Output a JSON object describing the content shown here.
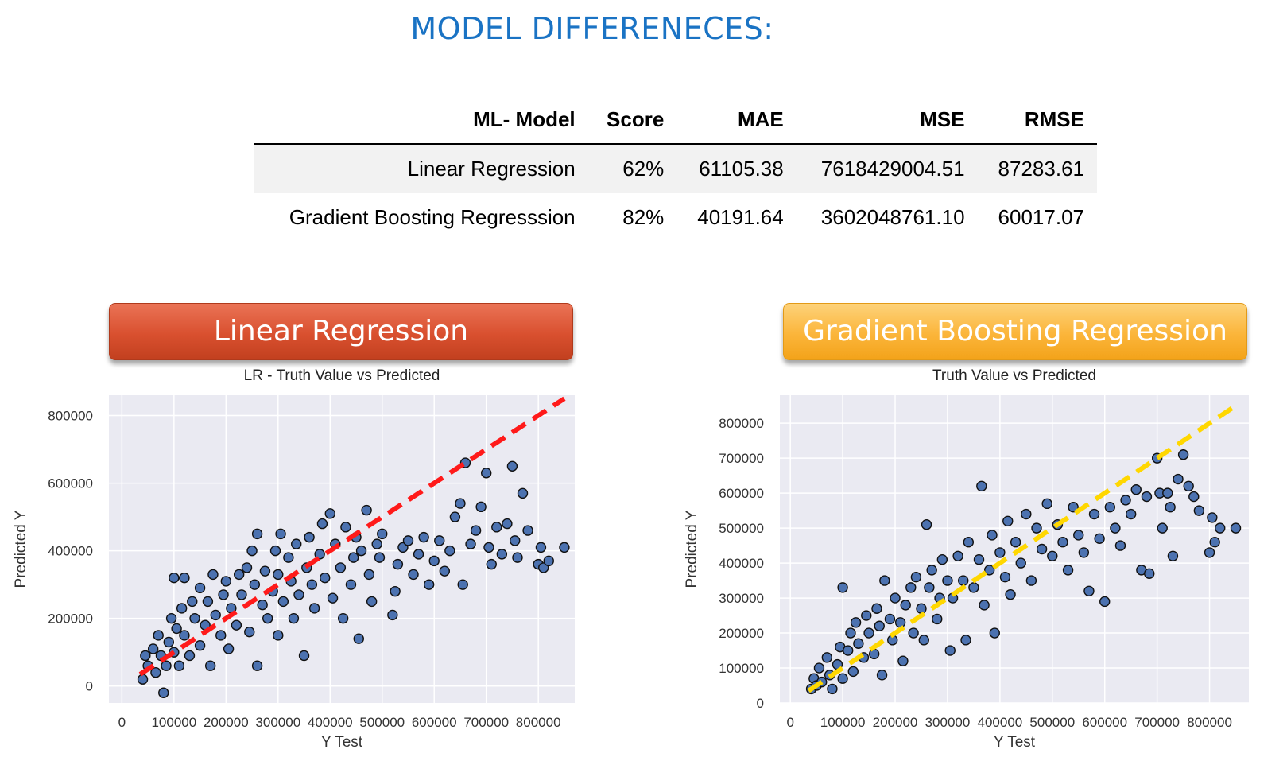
{
  "page_title": "MODEL DIFFERENECES:",
  "table": {
    "headers": [
      "ML- Model",
      "Score",
      "MAE",
      "MSE",
      "RMSE"
    ],
    "rows": [
      [
        "Linear Regression",
        "62%",
        "61105.38",
        "7618429004.51",
        "87283.61"
      ],
      [
        "Gradient Boosting Regresssion",
        "82%",
        "40191.64",
        "3602048761.10",
        "60017.07"
      ]
    ]
  },
  "banners": {
    "lr": "Linear Regression",
    "gb": "Gradient Boosting Regression"
  },
  "colors": {
    "title": "#1a73c4",
    "points": "#4c72b0",
    "lr_line": "#ff1a1a",
    "gb_line": "#ffd700",
    "plot_bg": "#eaeaf2"
  },
  "chart_data": [
    {
      "type": "scatter",
      "title": "LR - Truth Value vs Predicted",
      "xlabel": "Y Test",
      "ylabel": "Predicted Y",
      "xlim": [
        -25000,
        870000
      ],
      "ylim": [
        -50000,
        860000
      ],
      "xticks": [
        0,
        100000,
        200000,
        300000,
        400000,
        500000,
        600000,
        700000,
        800000
      ],
      "xtick_labels": [
        "0",
        "100000",
        "200000",
        "300000",
        "400000",
        "500000",
        "600000",
        "700000",
        "800000"
      ],
      "yticks": [
        0,
        200000,
        400000,
        600000,
        800000
      ],
      "ytick_labels": [
        "0",
        "200000",
        "400000",
        "600000",
        "800000"
      ],
      "grid": true,
      "reference_line": {
        "x": [
          35000,
          850000
        ],
        "y": [
          35000,
          850000
        ],
        "style": "dashed"
      },
      "points": [
        [
          40000,
          20000
        ],
        [
          45000,
          90000
        ],
        [
          50000,
          60000
        ],
        [
          60000,
          110000
        ],
        [
          65000,
          40000
        ],
        [
          70000,
          150000
        ],
        [
          75000,
          90000
        ],
        [
          80000,
          -20000
        ],
        [
          85000,
          60000
        ],
        [
          90000,
          130000
        ],
        [
          95000,
          200000
        ],
        [
          100000,
          100000
        ],
        [
          100000,
          320000
        ],
        [
          105000,
          170000
        ],
        [
          110000,
          60000
        ],
        [
          115000,
          230000
        ],
        [
          120000,
          150000
        ],
        [
          120000,
          320000
        ],
        [
          130000,
          90000
        ],
        [
          135000,
          250000
        ],
        [
          140000,
          200000
        ],
        [
          150000,
          120000
        ],
        [
          150000,
          290000
        ],
        [
          160000,
          180000
        ],
        [
          165000,
          250000
        ],
        [
          170000,
          60000
        ],
        [
          175000,
          330000
        ],
        [
          180000,
          210000
        ],
        [
          190000,
          150000
        ],
        [
          195000,
          270000
        ],
        [
          200000,
          310000
        ],
        [
          205000,
          110000
        ],
        [
          210000,
          230000
        ],
        [
          220000,
          180000
        ],
        [
          225000,
          330000
        ],
        [
          230000,
          270000
        ],
        [
          240000,
          350000
        ],
        [
          245000,
          160000
        ],
        [
          250000,
          400000
        ],
        [
          255000,
          300000
        ],
        [
          260000,
          60000
        ],
        [
          260000,
          450000
        ],
        [
          270000,
          240000
        ],
        [
          275000,
          340000
        ],
        [
          280000,
          200000
        ],
        [
          290000,
          280000
        ],
        [
          295000,
          400000
        ],
        [
          300000,
          330000
        ],
        [
          300000,
          150000
        ],
        [
          305000,
          450000
        ],
        [
          310000,
          250000
        ],
        [
          320000,
          380000
        ],
        [
          325000,
          310000
        ],
        [
          330000,
          200000
        ],
        [
          335000,
          420000
        ],
        [
          340000,
          270000
        ],
        [
          350000,
          90000
        ],
        [
          355000,
          350000
        ],
        [
          360000,
          440000
        ],
        [
          365000,
          300000
        ],
        [
          370000,
          230000
        ],
        [
          380000,
          390000
        ],
        [
          385000,
          480000
        ],
        [
          390000,
          320000
        ],
        [
          400000,
          510000
        ],
        [
          405000,
          260000
        ],
        [
          410000,
          420000
        ],
        [
          420000,
          350000
        ],
        [
          425000,
          200000
        ],
        [
          430000,
          470000
        ],
        [
          440000,
          300000
        ],
        [
          445000,
          380000
        ],
        [
          450000,
          440000
        ],
        [
          455000,
          140000
        ],
        [
          460000,
          400000
        ],
        [
          470000,
          520000
        ],
        [
          475000,
          330000
        ],
        [
          480000,
          250000
        ],
        [
          490000,
          420000
        ],
        [
          495000,
          380000
        ],
        [
          500000,
          450000
        ],
        [
          520000,
          210000
        ],
        [
          525000,
          280000
        ],
        [
          530000,
          360000
        ],
        [
          540000,
          410000
        ],
        [
          550000,
          430000
        ],
        [
          560000,
          330000
        ],
        [
          570000,
          390000
        ],
        [
          580000,
          440000
        ],
        [
          590000,
          300000
        ],
        [
          600000,
          370000
        ],
        [
          610000,
          430000
        ],
        [
          620000,
          340000
        ],
        [
          630000,
          400000
        ],
        [
          640000,
          500000
        ],
        [
          650000,
          540000
        ],
        [
          655000,
          300000
        ],
        [
          660000,
          660000
        ],
        [
          670000,
          420000
        ],
        [
          680000,
          460000
        ],
        [
          690000,
          530000
        ],
        [
          700000,
          630000
        ],
        [
          705000,
          410000
        ],
        [
          710000,
          360000
        ],
        [
          720000,
          470000
        ],
        [
          730000,
          390000
        ],
        [
          740000,
          480000
        ],
        [
          750000,
          650000
        ],
        [
          755000,
          430000
        ],
        [
          760000,
          380000
        ],
        [
          770000,
          570000
        ],
        [
          780000,
          460000
        ],
        [
          800000,
          360000
        ],
        [
          805000,
          410000
        ],
        [
          810000,
          350000
        ],
        [
          820000,
          370000
        ],
        [
          850000,
          410000
        ]
      ]
    },
    {
      "type": "scatter",
      "title": "Truth Value vs Predicted",
      "xlabel": "Y Test",
      "ylabel": "Predicted Y",
      "xlim": [
        -20000,
        875000
      ],
      "ylim": [
        0,
        880000
      ],
      "xticks": [
        0,
        100000,
        200000,
        300000,
        400000,
        500000,
        600000,
        700000,
        800000
      ],
      "xtick_labels": [
        "0",
        "100000",
        "200000",
        "300000",
        "400000",
        "500000",
        "600000",
        "700000",
        "800000"
      ],
      "yticks": [
        0,
        100000,
        200000,
        300000,
        400000,
        500000,
        600000,
        700000,
        800000
      ],
      "ytick_labels": [
        "0",
        "100000",
        "200000",
        "300000",
        "400000",
        "500000",
        "600000",
        "700000",
        "800000"
      ],
      "grid": true,
      "reference_line": {
        "x": [
          35000,
          850000
        ],
        "y": [
          35000,
          850000
        ],
        "style": "dashed"
      },
      "points": [
        [
          40000,
          40000
        ],
        [
          45000,
          70000
        ],
        [
          50000,
          50000
        ],
        [
          55000,
          100000
        ],
        [
          60000,
          60000
        ],
        [
          70000,
          130000
        ],
        [
          75000,
          80000
        ],
        [
          80000,
          40000
        ],
        [
          90000,
          110000
        ],
        [
          95000,
          160000
        ],
        [
          100000,
          70000
        ],
        [
          100000,
          330000
        ],
        [
          110000,
          150000
        ],
        [
          115000,
          200000
        ],
        [
          120000,
          90000
        ],
        [
          125000,
          230000
        ],
        [
          130000,
          170000
        ],
        [
          140000,
          130000
        ],
        [
          145000,
          250000
        ],
        [
          150000,
          200000
        ],
        [
          160000,
          140000
        ],
        [
          165000,
          270000
        ],
        [
          170000,
          220000
        ],
        [
          175000,
          80000
        ],
        [
          180000,
          350000
        ],
        [
          190000,
          240000
        ],
        [
          195000,
          180000
        ],
        [
          200000,
          300000
        ],
        [
          210000,
          230000
        ],
        [
          215000,
          120000
        ],
        [
          220000,
          280000
        ],
        [
          230000,
          330000
        ],
        [
          235000,
          200000
        ],
        [
          240000,
          360000
        ],
        [
          250000,
          270000
        ],
        [
          255000,
          180000
        ],
        [
          260000,
          510000
        ],
        [
          265000,
          330000
        ],
        [
          270000,
          380000
        ],
        [
          280000,
          240000
        ],
        [
          285000,
          300000
        ],
        [
          290000,
          410000
        ],
        [
          300000,
          350000
        ],
        [
          305000,
          150000
        ],
        [
          310000,
          300000
        ],
        [
          320000,
          420000
        ],
        [
          330000,
          350000
        ],
        [
          335000,
          180000
        ],
        [
          340000,
          460000
        ],
        [
          350000,
          330000
        ],
        [
          360000,
          410000
        ],
        [
          365000,
          620000
        ],
        [
          370000,
          280000
        ],
        [
          380000,
          380000
        ],
        [
          385000,
          480000
        ],
        [
          390000,
          200000
        ],
        [
          400000,
          430000
        ],
        [
          410000,
          360000
        ],
        [
          415000,
          520000
        ],
        [
          420000,
          310000
        ],
        [
          430000,
          460000
        ],
        [
          440000,
          400000
        ],
        [
          450000,
          540000
        ],
        [
          460000,
          350000
        ],
        [
          470000,
          500000
        ],
        [
          480000,
          440000
        ],
        [
          490000,
          570000
        ],
        [
          500000,
          420000
        ],
        [
          510000,
          510000
        ],
        [
          520000,
          460000
        ],
        [
          530000,
          380000
        ],
        [
          540000,
          560000
        ],
        [
          550000,
          480000
        ],
        [
          560000,
          430000
        ],
        [
          570000,
          320000
        ],
        [
          580000,
          540000
        ],
        [
          590000,
          470000
        ],
        [
          600000,
          290000
        ],
        [
          610000,
          560000
        ],
        [
          620000,
          500000
        ],
        [
          630000,
          450000
        ],
        [
          640000,
          580000
        ],
        [
          650000,
          540000
        ],
        [
          660000,
          610000
        ],
        [
          670000,
          380000
        ],
        [
          680000,
          590000
        ],
        [
          685000,
          370000
        ],
        [
          700000,
          700000
        ],
        [
          705000,
          600000
        ],
        [
          710000,
          500000
        ],
        [
          720000,
          600000
        ],
        [
          725000,
          560000
        ],
        [
          730000,
          420000
        ],
        [
          740000,
          640000
        ],
        [
          750000,
          710000
        ],
        [
          760000,
          620000
        ],
        [
          770000,
          590000
        ],
        [
          780000,
          550000
        ],
        [
          800000,
          430000
        ],
        [
          805000,
          530000
        ],
        [
          810000,
          460000
        ],
        [
          820000,
          500000
        ],
        [
          850000,
          500000
        ]
      ]
    }
  ]
}
